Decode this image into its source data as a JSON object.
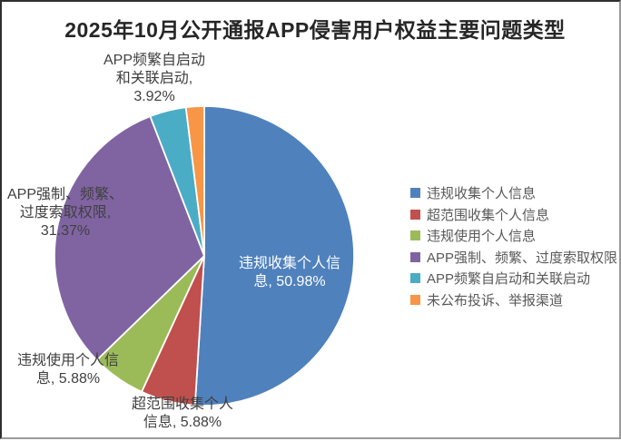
{
  "chart_data": {
    "type": "pie",
    "title": "2025年10月公开通报APP侵害用户权益主要问题类型",
    "unit": "percent",
    "start_angle_deg": 0,
    "direction": "clockwise",
    "legend_position": "right",
    "categories": [
      "违规收集个人信息",
      "超范围收集个人信息",
      "违规使用个人信息",
      "APP强制、频繁、过度索取权限",
      "APP频繁自启动和关联启动",
      "未公布投诉、举报渠道"
    ],
    "values": [
      50.98,
      5.88,
      5.88,
      31.37,
      3.92,
      1.96
    ],
    "colors": [
      "#4F81BD",
      "#C0504D",
      "#9BBB59",
      "#8064A2",
      "#4BACC6",
      "#F79646"
    ],
    "slice_border_color": "#FFFFFF",
    "data_labels": [
      {
        "slice": "违规收集个人信息",
        "value_percent": 50.98,
        "text": "违规收集个人信\n息, 50.98%",
        "placement": "inside"
      },
      {
        "slice": "超范围收集个人信息",
        "value_percent": 5.88,
        "text": "超范围收集个人\n信息, 5.88%",
        "placement": "outside-bottom"
      },
      {
        "slice": "违规使用个人信息",
        "value_percent": 5.88,
        "text": "违规使用个人信\n息, 5.88%",
        "placement": "outside-left-bottom"
      },
      {
        "slice": "APP强制、频繁、过度索取权限",
        "value_percent": 31.37,
        "text": "APP强制、频繁、\n过度索取权限,\n31.37%",
        "placement": "outside-left"
      },
      {
        "slice": "APP频繁自启动和关联启动",
        "value_percent": 3.92,
        "text": "APP频繁自启动\n和关联启动,\n3.92%",
        "placement": "outside-top"
      }
    ],
    "legend": {
      "items": [
        {
          "label": "违规收集个人信息",
          "color": "#4F81BD"
        },
        {
          "label": "超范围收集个人信息",
          "color": "#C0504D"
        },
        {
          "label": "违规使用个人信息",
          "color": "#9BBB59"
        },
        {
          "label": "APP强制、频繁、过度索取权限",
          "color": "#8064A2"
        },
        {
          "label": "APP频繁自启动和关联启动",
          "color": "#4BACC6"
        },
        {
          "label": "未公布投诉、举报渠道",
          "color": "#F79646"
        }
      ]
    }
  },
  "style": {
    "title_color": "#262626",
    "outside_label_color": "#404040",
    "inside_label_color": "#FFFFFF",
    "legend_text_color": "#595959"
  }
}
